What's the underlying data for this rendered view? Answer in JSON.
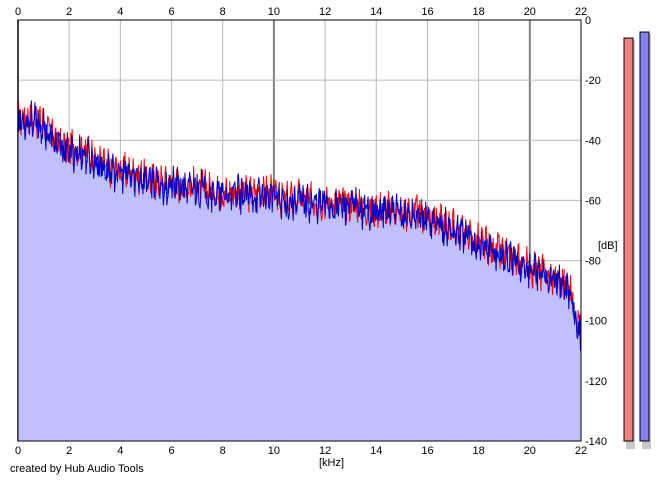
{
  "footer_text": "created by Hub Audio Tools",
  "chart_data": {
    "type": "area",
    "title": "",
    "xlabel": "[kHz]",
    "ylabel": "[dB]",
    "xlim": [
      0,
      22
    ],
    "ylim": [
      -140,
      0
    ],
    "x_ticks": [
      "0",
      "2",
      "4",
      "6",
      "8",
      "10",
      "12",
      "14",
      "16",
      "18",
      "20",
      "22"
    ],
    "y_ticks": [
      "0",
      "-20",
      "-40",
      "-60",
      "-80",
      "-100",
      "-120",
      "-140"
    ],
    "grid": true,
    "x_major_grid_every": 10,
    "series": [
      {
        "color": "#ff0000",
        "x": [
          0,
          0.5,
          1,
          1.5,
          2,
          2.5,
          3,
          3.5,
          4,
          4.5,
          5,
          5.5,
          6,
          6.5,
          7,
          7.5,
          8,
          8.5,
          9,
          9.5,
          10,
          10.5,
          11,
          11.5,
          12,
          12.5,
          13,
          13.5,
          14,
          14.5,
          15,
          15.5,
          16,
          16.5,
          17,
          17.5,
          18,
          18.5,
          19,
          19.5,
          20,
          20.5,
          21,
          21.5,
          22
        ],
        "values": [
          -33,
          -32,
          -34,
          -40,
          -43,
          -42,
          -46,
          -49,
          -50,
          -51,
          -52,
          -54,
          -54,
          -55,
          -55,
          -56,
          -58,
          -57,
          -58,
          -57,
          -58,
          -60,
          -59,
          -60,
          -60,
          -61,
          -61,
          -62,
          -63,
          -63,
          -64,
          -64,
          -65,
          -67,
          -69,
          -71,
          -74,
          -76,
          -78,
          -80,
          -82,
          -84,
          -86,
          -88,
          -102
        ]
      },
      {
        "color": "#0000cc",
        "x": [
          0,
          0.5,
          1,
          1.5,
          2,
          2.5,
          3,
          3.5,
          4,
          4.5,
          5,
          5.5,
          6,
          6.5,
          7,
          7.5,
          8,
          8.5,
          9,
          9.5,
          10,
          10.5,
          11,
          11.5,
          12,
          12.5,
          13,
          13.5,
          14,
          14.5,
          15,
          15.5,
          16,
          16.5,
          17,
          17.5,
          18,
          18.5,
          19,
          19.5,
          20,
          20.5,
          21,
          21.5,
          22
        ],
        "values": [
          -34,
          -33,
          -36,
          -42,
          -44,
          -44,
          -47,
          -50,
          -51,
          -52,
          -53,
          -55,
          -55,
          -56,
          -56,
          -57,
          -59,
          -58,
          -59,
          -58,
          -59,
          -61,
          -60,
          -61,
          -61,
          -62,
          -62,
          -63,
          -64,
          -64,
          -65,
          -65,
          -66,
          -68,
          -70,
          -72,
          -75,
          -77,
          -79,
          -81,
          -83,
          -85,
          -87,
          -89,
          -106
        ]
      }
    ],
    "fill_color": "#c0c0ff",
    "meters": [
      {
        "color": "#f08080",
        "value": -6
      },
      {
        "color": "#8080f0",
        "value": -4
      }
    ]
  }
}
